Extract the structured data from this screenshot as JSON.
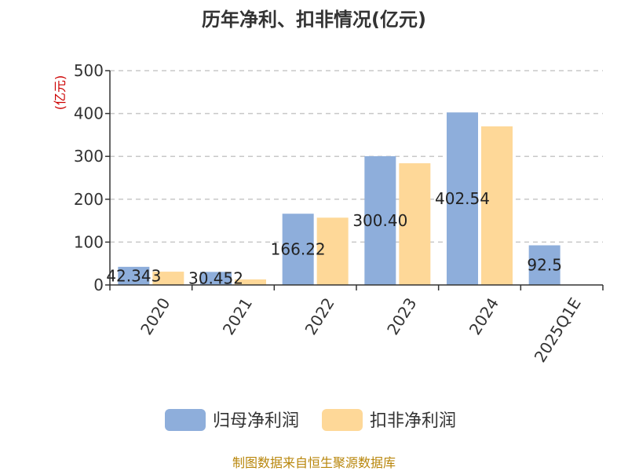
{
  "chart_data": {
    "type": "bar",
    "title": "历年净利、扣非情况(亿元)",
    "ylabel": "(亿元)",
    "xlabel": "",
    "categories": [
      "2020",
      "2021",
      "2022",
      "2023",
      "2024",
      "2025Q1E"
    ],
    "ylim": [
      0,
      500
    ],
    "yticks": [
      0,
      100,
      200,
      300,
      400,
      500
    ],
    "grid": true,
    "legend_position": "bottom",
    "series": [
      {
        "name": "归母净利润",
        "color": "#8eaedb",
        "values": [
          42.343,
          30.452,
          166.22,
          300.4,
          402.54,
          92.5
        ],
        "data_labels": [
          "42.343",
          "30.452",
          "166.22",
          "300.40",
          "402.54",
          "92.5"
        ]
      },
      {
        "name": "扣非净利润",
        "color": "#fed898",
        "values": [
          31,
          13,
          157,
          284,
          370,
          null
        ]
      }
    ]
  },
  "footer": {
    "source": "制图数据来自恒生聚源数据库",
    "color": "#b8860b"
  }
}
